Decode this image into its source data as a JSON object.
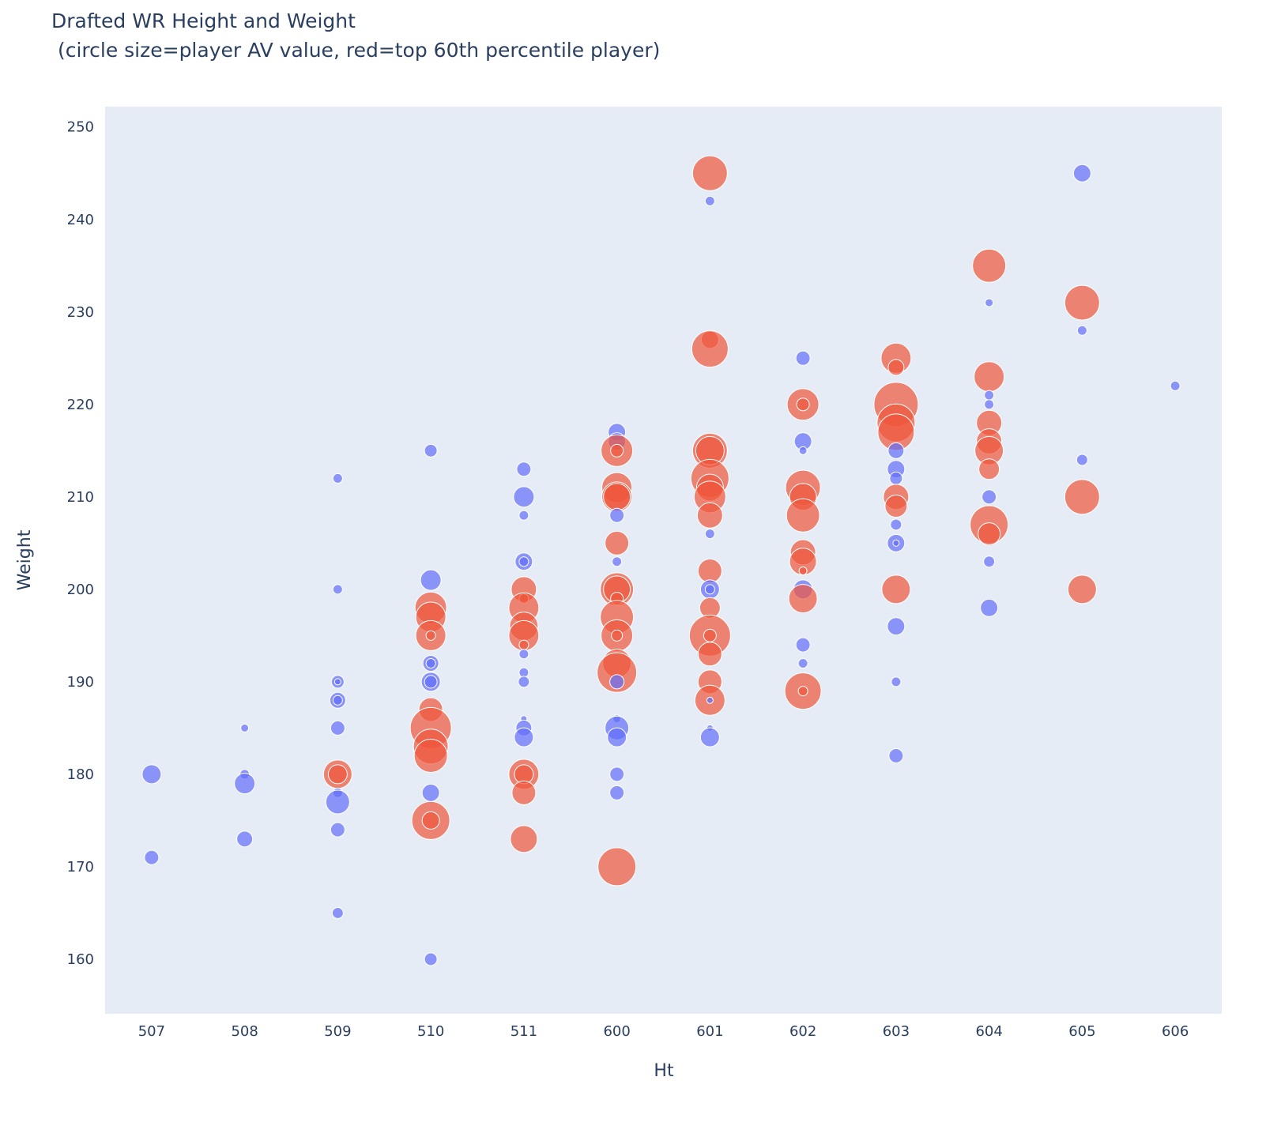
{
  "chart_data": {
    "type": "scatter",
    "title": "Drafted WR Height and Weight",
    "subtitle": "(circle size=player AV value, red=top 60th percentile player)",
    "xlabel": "Ht",
    "ylabel": "Weight",
    "x_categories": [
      "507",
      "508",
      "509",
      "510",
      "511",
      "600",
      "601",
      "602",
      "603",
      "604",
      "605",
      "606"
    ],
    "y_ticks": [
      160,
      170,
      180,
      190,
      200,
      210,
      220,
      230,
      240,
      250
    ],
    "ylim": [
      154.1,
      252.2
    ],
    "grid": false,
    "legend": "none",
    "colors": {
      "top": "#EF553B",
      "other": "#636EFA",
      "plot_bg": "#E5ECF6"
    },
    "point_fields": [
      "ht",
      "weight",
      "size",
      "group"
    ],
    "points": [
      [
        "507",
        180,
        12,
        "other"
      ],
      [
        "507",
        171,
        9,
        "other"
      ],
      [
        "508",
        185,
        5,
        "other"
      ],
      [
        "508",
        180,
        6,
        "other"
      ],
      [
        "508",
        179,
        13,
        "other"
      ],
      [
        "508",
        173,
        10,
        "other"
      ],
      [
        "509",
        212,
        6,
        "other"
      ],
      [
        "509",
        200,
        6,
        "other"
      ],
      [
        "509",
        190,
        8,
        "other"
      ],
      [
        "509",
        190,
        4,
        "other"
      ],
      [
        "509",
        188,
        10,
        "other"
      ],
      [
        "509",
        188,
        6,
        "other"
      ],
      [
        "509",
        185,
        9,
        "other"
      ],
      [
        "509",
        180,
        18,
        "top"
      ],
      [
        "509",
        180,
        12,
        "top"
      ],
      [
        "509",
        178,
        6,
        "other"
      ],
      [
        "509",
        177,
        15,
        "other"
      ],
      [
        "509",
        174,
        9,
        "other"
      ],
      [
        "509",
        165,
        7,
        "other"
      ],
      [
        "510",
        215,
        8,
        "other"
      ],
      [
        "510",
        201,
        13,
        "other"
      ],
      [
        "510",
        198,
        20,
        "top"
      ],
      [
        "510",
        197,
        19,
        "top"
      ],
      [
        "510",
        195,
        19,
        "top"
      ],
      [
        "510",
        195,
        6,
        "top"
      ],
      [
        "510",
        192,
        10,
        "other"
      ],
      [
        "510",
        192,
        6,
        "other"
      ],
      [
        "510",
        190,
        12,
        "other"
      ],
      [
        "510",
        190,
        8,
        "other"
      ],
      [
        "510",
        187,
        15,
        "top"
      ],
      [
        "510",
        185,
        26,
        "top"
      ],
      [
        "510",
        183,
        22,
        "top"
      ],
      [
        "510",
        182,
        21,
        "top"
      ],
      [
        "510",
        178,
        11,
        "other"
      ],
      [
        "510",
        175,
        24,
        "top"
      ],
      [
        "510",
        175,
        11,
        "top"
      ],
      [
        "510",
        160,
        8,
        "other"
      ],
      [
        "511",
        213,
        9,
        "other"
      ],
      [
        "511",
        210,
        13,
        "other"
      ],
      [
        "511",
        208,
        6,
        "other"
      ],
      [
        "511",
        203,
        11,
        "other"
      ],
      [
        "511",
        203,
        6,
        "other"
      ],
      [
        "511",
        200,
        16,
        "top"
      ],
      [
        "511",
        199,
        6,
        "top"
      ],
      [
        "511",
        198,
        19,
        "top"
      ],
      [
        "511",
        196,
        18,
        "top"
      ],
      [
        "511",
        195,
        19,
        "top"
      ],
      [
        "511",
        194,
        6,
        "top"
      ],
      [
        "511",
        193,
        6,
        "other"
      ],
      [
        "511",
        191,
        6,
        "other"
      ],
      [
        "511",
        190,
        7,
        "other"
      ],
      [
        "511",
        186,
        4,
        "other"
      ],
      [
        "511",
        185,
        10,
        "other"
      ],
      [
        "511",
        184,
        12,
        "other"
      ],
      [
        "511",
        180,
        19,
        "top"
      ],
      [
        "511",
        180,
        12,
        "top"
      ],
      [
        "511",
        178,
        15,
        "top"
      ],
      [
        "511",
        173,
        17,
        "top"
      ],
      [
        "600",
        217,
        11,
        "other"
      ],
      [
        "600",
        216,
        11,
        "other"
      ],
      [
        "600",
        215,
        20,
        "top"
      ],
      [
        "600",
        215,
        8,
        "top"
      ],
      [
        "600",
        211,
        19,
        "top"
      ],
      [
        "600",
        210,
        19,
        "top"
      ],
      [
        "600",
        210,
        17,
        "top"
      ],
      [
        "600",
        208,
        9,
        "other"
      ],
      [
        "600",
        205,
        15,
        "top"
      ],
      [
        "600",
        203,
        6,
        "other"
      ],
      [
        "600",
        200,
        21,
        "top"
      ],
      [
        "600",
        200,
        17,
        "top"
      ],
      [
        "600",
        199,
        8,
        "top"
      ],
      [
        "600",
        197,
        21,
        "top"
      ],
      [
        "600",
        195,
        20,
        "top"
      ],
      [
        "600",
        195,
        7,
        "top"
      ],
      [
        "600",
        192,
        18,
        "top"
      ],
      [
        "600",
        191,
        25,
        "top"
      ],
      [
        "600",
        190,
        9,
        "other"
      ],
      [
        "600",
        186,
        5,
        "other"
      ],
      [
        "600",
        185,
        15,
        "other"
      ],
      [
        "600",
        184,
        12,
        "other"
      ],
      [
        "600",
        180,
        9,
        "other"
      ],
      [
        "600",
        178,
        9,
        "other"
      ],
      [
        "600",
        170,
        24,
        "top"
      ],
      [
        "601",
        245,
        22,
        "top"
      ],
      [
        "601",
        242,
        6,
        "other"
      ],
      [
        "601",
        227,
        11,
        "top"
      ],
      [
        "601",
        226,
        23,
        "top"
      ],
      [
        "601",
        215,
        22,
        "top"
      ],
      [
        "601",
        215,
        18,
        "top"
      ],
      [
        "601",
        212,
        24,
        "top"
      ],
      [
        "601",
        211,
        17,
        "top"
      ],
      [
        "601",
        210,
        20,
        "top"
      ],
      [
        "601",
        208,
        16,
        "top"
      ],
      [
        "601",
        206,
        6,
        "other"
      ],
      [
        "601",
        202,
        15,
        "top"
      ],
      [
        "601",
        200,
        12,
        "other"
      ],
      [
        "601",
        200,
        6,
        "other"
      ],
      [
        "601",
        198,
        13,
        "top"
      ],
      [
        "601",
        195,
        26,
        "top"
      ],
      [
        "601",
        195,
        8,
        "top"
      ],
      [
        "601",
        193,
        15,
        "top"
      ],
      [
        "601",
        190,
        15,
        "top"
      ],
      [
        "601",
        188,
        19,
        "top"
      ],
      [
        "601",
        188,
        4,
        "other"
      ],
      [
        "601",
        185,
        4,
        "other"
      ],
      [
        "601",
        184,
        12,
        "other"
      ],
      [
        "602",
        225,
        9,
        "other"
      ],
      [
        "602",
        220,
        20,
        "top"
      ],
      [
        "602",
        220,
        8,
        "top"
      ],
      [
        "602",
        216,
        11,
        "other"
      ],
      [
        "602",
        215,
        5,
        "other"
      ],
      [
        "602",
        211,
        22,
        "top"
      ],
      [
        "602",
        210,
        17,
        "top"
      ],
      [
        "602",
        208,
        21,
        "top"
      ],
      [
        "602",
        204,
        16,
        "top"
      ],
      [
        "602",
        203,
        17,
        "top"
      ],
      [
        "602",
        202,
        5,
        "top"
      ],
      [
        "602",
        200,
        12,
        "other"
      ],
      [
        "602",
        199,
        18,
        "top"
      ],
      [
        "602",
        194,
        9,
        "other"
      ],
      [
        "602",
        192,
        6,
        "other"
      ],
      [
        "602",
        189,
        23,
        "top"
      ],
      [
        "602",
        189,
        6,
        "top"
      ],
      [
        "603",
        225,
        19,
        "top"
      ],
      [
        "603",
        224,
        10,
        "top"
      ],
      [
        "603",
        220,
        28,
        "top"
      ],
      [
        "603",
        218,
        24,
        "top"
      ],
      [
        "603",
        217,
        23,
        "top"
      ],
      [
        "603",
        215,
        10,
        "other"
      ],
      [
        "603",
        213,
        11,
        "other"
      ],
      [
        "603",
        212,
        8,
        "other"
      ],
      [
        "603",
        210,
        16,
        "top"
      ],
      [
        "603",
        209,
        14,
        "top"
      ],
      [
        "603",
        207,
        7,
        "other"
      ],
      [
        "603",
        205,
        11,
        "other"
      ],
      [
        "603",
        205,
        4,
        "other"
      ],
      [
        "603",
        200,
        18,
        "top"
      ],
      [
        "603",
        196,
        11,
        "other"
      ],
      [
        "603",
        190,
        6,
        "other"
      ],
      [
        "603",
        182,
        9,
        "other"
      ],
      [
        "604",
        235,
        21,
        "top"
      ],
      [
        "604",
        231,
        5,
        "other"
      ],
      [
        "604",
        223,
        19,
        "top"
      ],
      [
        "604",
        221,
        6,
        "other"
      ],
      [
        "604",
        220,
        6,
        "other"
      ],
      [
        "604",
        218,
        16,
        "top"
      ],
      [
        "604",
        216,
        16,
        "top"
      ],
      [
        "604",
        215,
        18,
        "top"
      ],
      [
        "604",
        213,
        13,
        "top"
      ],
      [
        "604",
        210,
        9,
        "other"
      ],
      [
        "604",
        207,
        24,
        "top"
      ],
      [
        "604",
        206,
        14,
        "top"
      ],
      [
        "604",
        203,
        7,
        "other"
      ],
      [
        "604",
        198,
        11,
        "other"
      ],
      [
        "605",
        245,
        11,
        "other"
      ],
      [
        "605",
        231,
        22,
        "top"
      ],
      [
        "605",
        228,
        6,
        "other"
      ],
      [
        "605",
        214,
        7,
        "other"
      ],
      [
        "605",
        210,
        22,
        "top"
      ],
      [
        "605",
        200,
        18,
        "top"
      ],
      [
        "606",
        222,
        6,
        "other"
      ]
    ]
  }
}
